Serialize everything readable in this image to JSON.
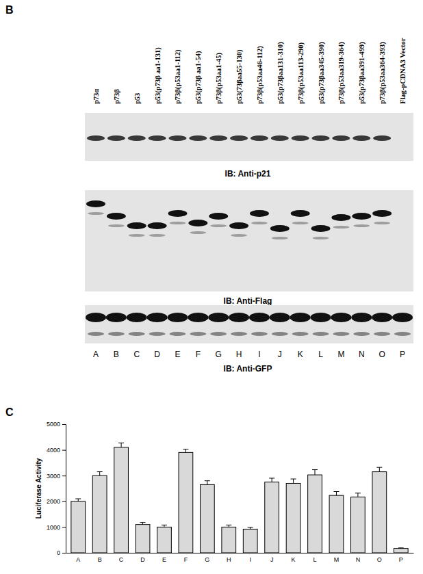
{
  "figure": {
    "panel_labels": [
      "B",
      "C"
    ]
  },
  "panel_b": {
    "lanes": [
      "p73α",
      "p73β",
      "p53",
      "p53(p73β aa1-131)",
      "p73β(p53aa1-112)",
      "p53(p73β aa1-54)",
      "p73β(p53aa1-45)",
      "p53(73βaa55-130)",
      "p73β(p53aa46-112)",
      "p53(p73βaa131-310)",
      "p73β(p53aa113-290)",
      "p53(p73βaa345-390)",
      "p73β(p53aa319-364)",
      "p53(p73βaa391-499)",
      "p73β(p53aa364-393)",
      "Flag-pCDNA3 Vector"
    ],
    "lane_letters": [
      "A",
      "B",
      "C",
      "D",
      "E",
      "F",
      "G",
      "H",
      "I",
      "J",
      "K",
      "L",
      "M",
      "N",
      "O",
      "P"
    ],
    "blots": [
      "IB: Anti-p21",
      "IB: Anti-Flag",
      "IB: Anti-GFP"
    ]
  },
  "chart_data": {
    "type": "bar",
    "y_label": "Luciferase Activity",
    "categories": [
      "A",
      "B",
      "C",
      "D",
      "E",
      "F",
      "G",
      "H",
      "I",
      "J",
      "K",
      "L",
      "M",
      "N",
      "O",
      "P"
    ],
    "values": [
      2000,
      3000,
      4100,
      1100,
      1000,
      3900,
      2650,
      1000,
      920,
      2750,
      2700,
      3030,
      2230,
      2170,
      3150,
      170
    ],
    "errors": [
      100,
      150,
      170,
      80,
      80,
      130,
      150,
      80,
      70,
      150,
      170,
      200,
      150,
      150,
      170,
      20
    ],
    "color": "#d9d9d9",
    "ylim": [
      0,
      5000
    ],
    "yticks": [
      0,
      1000,
      2000,
      3000,
      4000,
      5000
    ],
    "grid": false
  }
}
